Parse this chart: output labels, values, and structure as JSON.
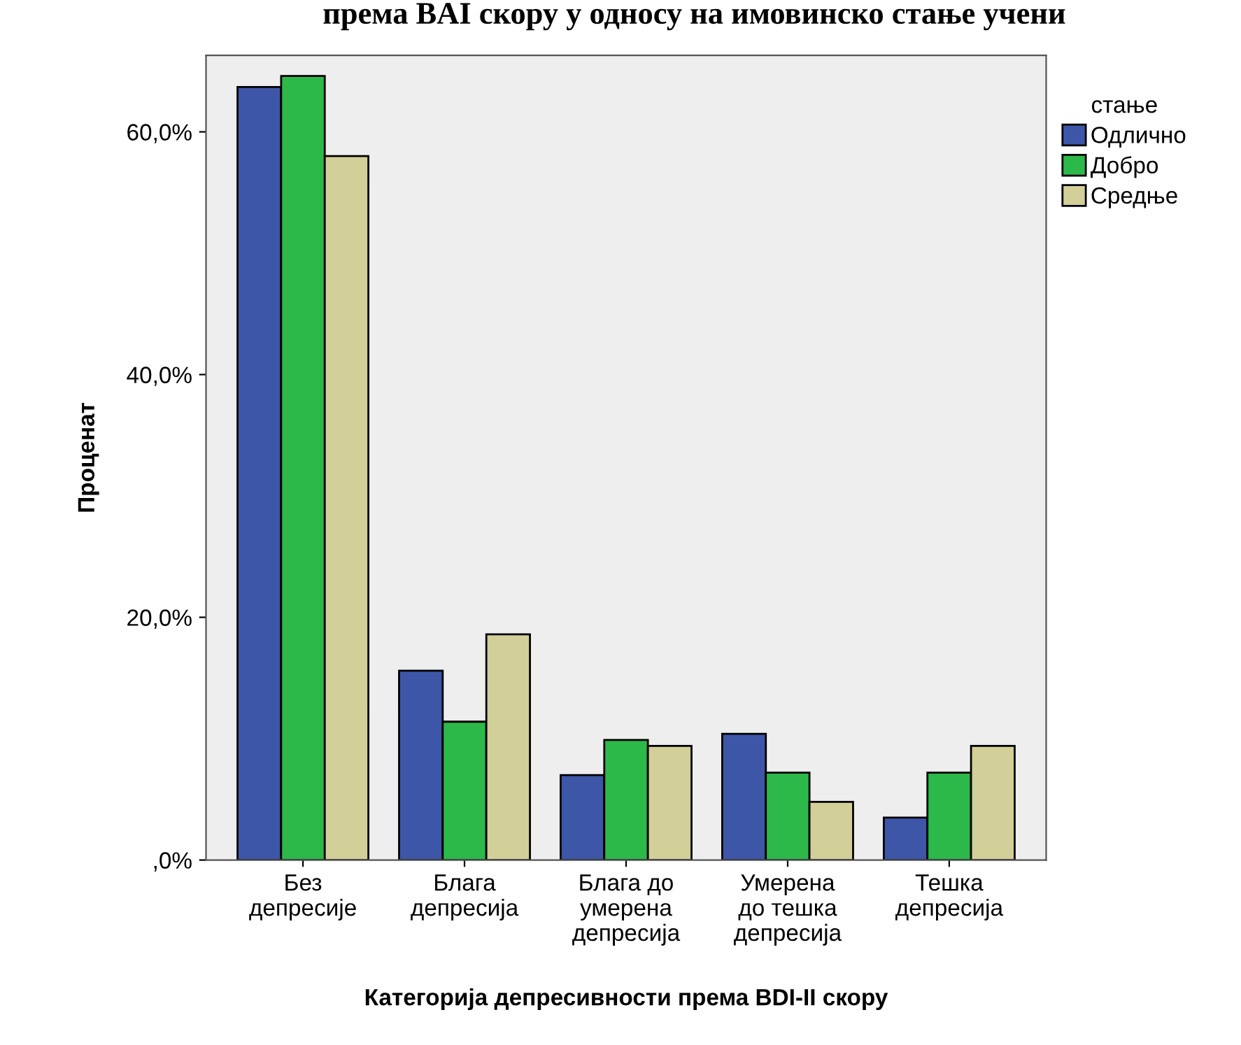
{
  "chart_data": {
    "type": "bar",
    "title": "према BAI скору у односу на имовинско стање учени",
    "xlabel": "Категорија депресивности према BDI-II скору",
    "ylabel": "Проценат",
    "legend_title": "стање",
    "legend": "top right",
    "grid": false,
    "categories": [
      "Без\nдепресије",
      "Блага\nдепресија",
      "Блага до\nумерена\nдепресија",
      "Умерена\nдо тешка\nдепресија",
      "Тешка\nдепресија"
    ],
    "ylim": [
      0,
      66.3
    ],
    "yticks": [
      {
        "value": 0,
        "label": ",0%"
      },
      {
        "value": 20,
        "label": "20,0%"
      },
      {
        "value": 40,
        "label": "40,0%"
      },
      {
        "value": 60,
        "label": "60,0%"
      }
    ],
    "series": [
      {
        "name": "Одлично",
        "color": "#3d56a8",
        "values": [
          63.7,
          15.6,
          7.0,
          10.4,
          3.5
        ]
      },
      {
        "name": "Добро",
        "color": "#2db84a",
        "values": [
          64.6,
          11.4,
          9.9,
          7.2,
          7.2
        ]
      },
      {
        "name": "Средње",
        "color": "#d3cf98",
        "values": [
          58.0,
          18.6,
          9.4,
          4.8,
          9.4
        ]
      }
    ]
  }
}
